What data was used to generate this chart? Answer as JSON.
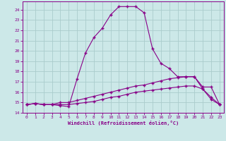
{
  "xlabel": "Windchill (Refroidissement éolien,°C)",
  "bg_color": "#cce8e8",
  "line_color": "#880088",
  "grid_color": "#aacccc",
  "xlim": [
    -0.5,
    23.5
  ],
  "ylim": [
    14.0,
    24.8
  ],
  "yticks": [
    14,
    15,
    16,
    17,
    18,
    19,
    20,
    21,
    22,
    23,
    24
  ],
  "xticks": [
    0,
    1,
    2,
    3,
    4,
    5,
    6,
    7,
    8,
    9,
    10,
    11,
    12,
    13,
    14,
    15,
    16,
    17,
    18,
    19,
    20,
    21,
    22,
    23
  ],
  "line1_x": [
    0,
    1,
    2,
    3,
    4,
    5,
    6,
    7,
    8,
    9,
    10,
    11,
    12,
    13,
    14,
    15,
    16,
    17,
    18,
    19,
    20,
    21,
    22,
    23
  ],
  "line1_y": [
    14.8,
    14.9,
    14.8,
    14.8,
    14.7,
    14.6,
    17.3,
    19.8,
    21.3,
    22.2,
    23.5,
    24.3,
    24.3,
    24.3,
    23.7,
    20.2,
    18.8,
    18.3,
    17.5,
    17.5,
    17.5,
    16.5,
    16.5,
    14.8
  ],
  "line2_x": [
    0,
    1,
    2,
    3,
    4,
    5,
    6,
    7,
    8,
    9,
    10,
    11,
    12,
    13,
    14,
    15,
    16,
    17,
    18,
    19,
    20,
    21,
    22,
    23
  ],
  "line2_y": [
    14.8,
    14.9,
    14.8,
    14.8,
    15.0,
    15.0,
    15.2,
    15.4,
    15.6,
    15.8,
    16.0,
    16.2,
    16.4,
    16.6,
    16.7,
    16.9,
    17.1,
    17.3,
    17.4,
    17.5,
    17.5,
    16.3,
    15.3,
    14.8
  ],
  "line3_x": [
    0,
    1,
    2,
    3,
    4,
    5,
    6,
    7,
    8,
    9,
    10,
    11,
    12,
    13,
    14,
    15,
    16,
    17,
    18,
    19,
    20,
    21,
    22,
    23
  ],
  "line3_y": [
    14.8,
    14.9,
    14.8,
    14.8,
    14.8,
    14.8,
    14.9,
    15.0,
    15.1,
    15.3,
    15.5,
    15.6,
    15.8,
    16.0,
    16.1,
    16.2,
    16.3,
    16.4,
    16.5,
    16.6,
    16.6,
    16.3,
    15.5,
    14.8
  ]
}
